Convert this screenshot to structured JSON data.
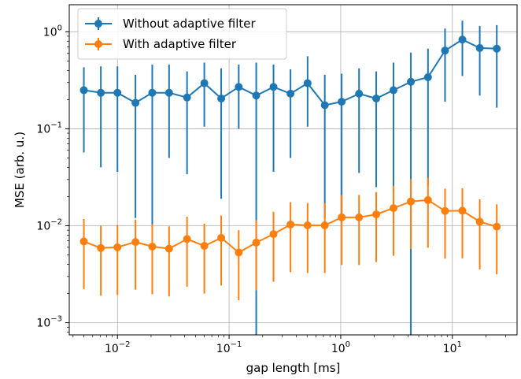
{
  "chart_data": {
    "type": "line",
    "xscale": "log",
    "yscale": "log",
    "xlabel": "gap length [ms]",
    "ylabel": "MSE (arb. u.)",
    "xlim": [
      0.0037,
      38
    ],
    "ylim": [
      0.00075,
      1.9
    ],
    "xticks": [
      {
        "value": 0.01,
        "mantissa": "10",
        "exp": "−2"
      },
      {
        "value": 0.1,
        "mantissa": "10",
        "exp": "−1"
      },
      {
        "value": 1,
        "mantissa": "10",
        "exp": "0"
      },
      {
        "value": 10,
        "mantissa": "10",
        "exp": "1"
      }
    ],
    "yticks": [
      {
        "value": 0.001,
        "mantissa": "10",
        "exp": "−3"
      },
      {
        "value": 0.01,
        "mantissa": "10",
        "exp": "−2"
      },
      {
        "value": 0.1,
        "mantissa": "10",
        "exp": "−1"
      },
      {
        "value": 1,
        "mantissa": "10",
        "exp": "0"
      }
    ],
    "grid": true,
    "legend_position": "top-left",
    "x": [
      0.005,
      0.0071,
      0.01,
      0.0145,
      0.0205,
      0.029,
      0.042,
      0.06,
      0.085,
      0.122,
      0.175,
      0.25,
      0.355,
      0.505,
      0.72,
      1.02,
      1.46,
      2.08,
      2.97,
      4.25,
      6.05,
      8.6,
      12.3,
      17.6,
      25.0
    ],
    "series": [
      {
        "name": "Without adaptive filter",
        "color": "#1f77b4",
        "y": [
          0.25,
          0.235,
          0.235,
          0.185,
          0.235,
          0.235,
          0.21,
          0.295,
          0.205,
          0.27,
          0.22,
          0.27,
          0.23,
          0.295,
          0.175,
          0.19,
          0.23,
          0.205,
          0.25,
          0.305,
          0.34,
          0.64,
          0.83,
          0.68,
          0.67
        ],
        "y_low": [
          0.057,
          0.04,
          0.036,
          0.012,
          0.01,
          0.05,
          0.034,
          0.105,
          0.019,
          0.1,
          0.00075,
          0.036,
          0.05,
          0.105,
          0.012,
          0.012,
          0.035,
          0.025,
          0.022,
          0.00075,
          0.026,
          0.19,
          0.35,
          0.22,
          0.165
        ],
        "y_high": [
          0.43,
          0.44,
          0.44,
          0.36,
          0.46,
          0.46,
          0.39,
          0.48,
          0.42,
          0.46,
          0.48,
          0.46,
          0.41,
          0.56,
          0.36,
          0.37,
          0.42,
          0.39,
          0.48,
          0.61,
          0.67,
          1.08,
          1.3,
          1.15,
          1.17
        ]
      },
      {
        "name": "With adaptive filter",
        "color": "#ff7f0e",
        "y": [
          0.0069,
          0.0059,
          0.006,
          0.0068,
          0.0061,
          0.0058,
          0.0073,
          0.0062,
          0.0075,
          0.0053,
          0.0067,
          0.0082,
          0.0103,
          0.0101,
          0.0101,
          0.0122,
          0.0122,
          0.0131,
          0.0152,
          0.0178,
          0.0184,
          0.0142,
          0.0143,
          0.011,
          0.0098
        ]
      }
    ]
  }
}
